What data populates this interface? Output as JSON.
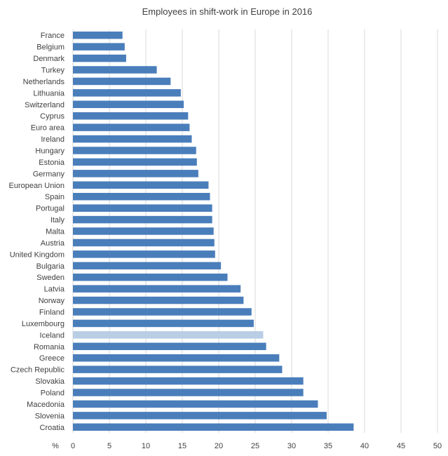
{
  "chart_data": {
    "type": "bar",
    "orientation": "horizontal",
    "title": "Employees in shift-work in Europe in 2016",
    "xlabel": "%",
    "ylabel": "",
    "xlim": [
      0,
      50
    ],
    "ticks": [
      0,
      5,
      10,
      15,
      20,
      25,
      30,
      35,
      40,
      45,
      50
    ],
    "grid": true,
    "colors": {
      "bar": "#4a7ebb",
      "highlight": "#b9cde5"
    },
    "highlight": "Iceland",
    "categories": [
      "France",
      "Belgium",
      "Denmark",
      "Turkey",
      "Netherlands",
      "Lithuania",
      "Switzerland",
      "Cyprus",
      "Euro area",
      "Ireland",
      "Hungary",
      "Estonia",
      "Germany",
      "European Union",
      "Spain",
      "Portugal",
      "Italy",
      "Malta",
      "Austria",
      "United Kingdom",
      "Bulgaria",
      "Sweden",
      "Latvia",
      "Norway",
      "Finland",
      "Luxembourg",
      "Iceland",
      "Romania",
      "Greece",
      "Czech Republic",
      "Slovakia",
      "Poland",
      "Macedonia",
      "Slovenia",
      "Croatia"
    ],
    "values": [
      6.8,
      7.1,
      7.3,
      11.5,
      13.4,
      14.8,
      15.2,
      15.8,
      16.0,
      16.3,
      16.9,
      17.0,
      17.2,
      18.6,
      18.8,
      19.1,
      19.1,
      19.3,
      19.4,
      19.5,
      20.3,
      21.2,
      23.0,
      23.4,
      24.5,
      24.8,
      26.1,
      26.5,
      28.3,
      28.7,
      31.6,
      31.6,
      33.6,
      34.8,
      38.5
    ]
  }
}
